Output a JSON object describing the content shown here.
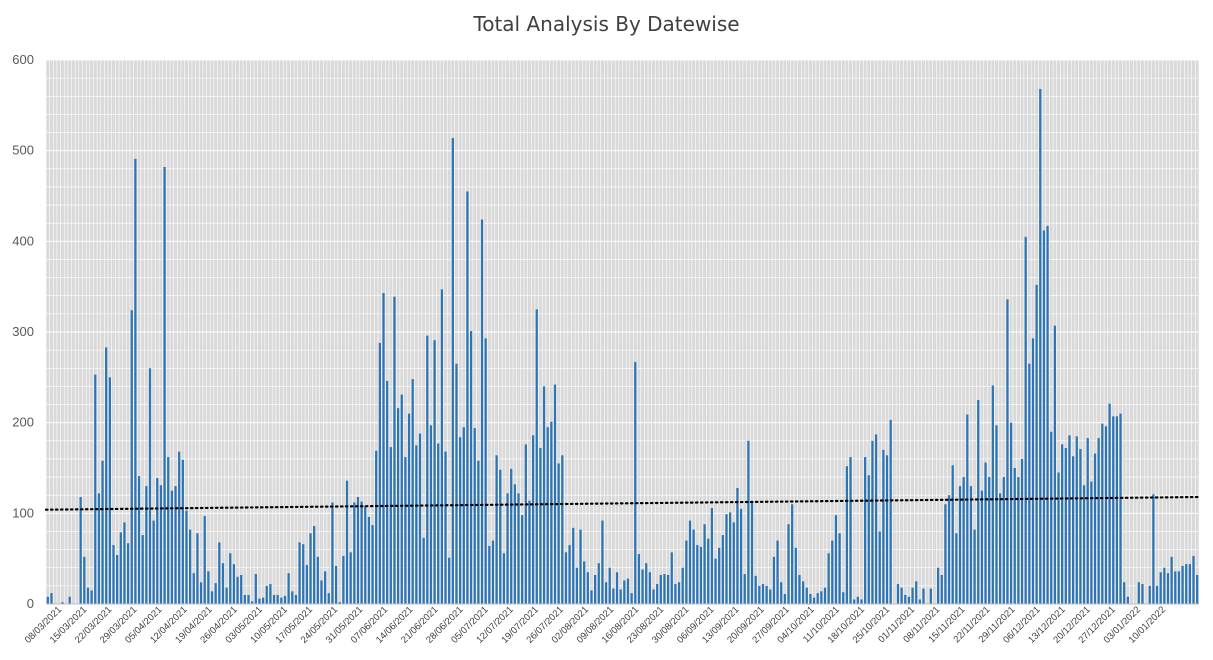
{
  "chart_data": {
    "type": "bar",
    "title": "Total Analysis By Datewise",
    "xlabel": "",
    "ylabel": "",
    "ylim": [
      0,
      600
    ],
    "y_ticks": [
      0,
      100,
      200,
      300,
      400,
      500,
      600
    ],
    "grid": true,
    "trendline": {
      "type": "linear",
      "style": "dotted",
      "color": "#000000",
      "start": 104,
      "end": 118
    },
    "bar_color": "#2E75B6",
    "x_tick_labels": [
      "08/03/2021",
      "15/03/2021",
      "22/03/2021",
      "29/03/2021",
      "05/04/2021",
      "12/04/2021",
      "19/04/2021",
      "26/04/2021",
      "03/05/2021",
      "10/05/2021",
      "17/05/2021",
      "24/05/2021",
      "31/05/2021",
      "07/06/2021",
      "14/06/2021",
      "21/06/2021",
      "28/06/2021",
      "05/07/2021",
      "12/07/2021",
      "19/07/2021",
      "26/07/2021",
      "02/08/2021",
      "09/08/2021",
      "16/08/2021",
      "23/08/2021",
      "30/08/2021",
      "06/09/2021",
      "13/09/2021",
      "20/09/2021",
      "27/09/2021",
      "04/10/2021",
      "11/10/2021",
      "18/10/2021",
      "25/10/2021",
      "01/11/2021",
      "08/11/2021",
      "15/11/2021",
      "22/11/2021",
      "29/11/2021",
      "06/12/2021",
      "13/12/2021",
      "20/12/2021",
      "27/12/2021",
      "03/01/2022",
      "10/01/2022"
    ],
    "values": [
      8,
      12,
      0,
      0,
      2,
      0,
      8,
      0,
      0,
      118,
      52,
      18,
      15,
      253,
      122,
      158,
      283,
      250,
      65,
      54,
      79,
      90,
      67,
      324,
      491,
      141,
      76,
      130,
      260,
      92,
      139,
      131,
      482,
      162,
      125,
      130,
      168,
      159,
      103,
      82,
      34,
      78,
      24,
      97,
      36,
      14,
      23,
      68,
      45,
      18,
      56,
      44,
      30,
      32,
      10,
      10,
      3,
      33,
      6,
      7,
      20,
      22,
      10,
      10,
      7,
      9,
      34,
      14,
      10,
      68,
      66,
      43,
      78,
      86,
      52,
      26,
      36,
      12,
      112,
      42,
      2,
      53,
      136,
      57,
      112,
      118,
      113,
      108,
      96,
      87,
      169,
      288,
      343,
      246,
      173,
      339,
      216,
      231,
      162,
      210,
      248,
      175,
      188,
      73,
      296,
      197,
      291,
      177,
      347,
      168,
      51,
      514,
      265,
      184,
      195,
      455,
      301,
      194,
      158,
      424,
      293,
      64,
      70,
      164,
      148,
      56,
      122,
      149,
      132,
      122,
      98,
      176,
      114,
      186,
      325,
      172,
      240,
      195,
      201,
      242,
      155,
      164,
      57,
      65,
      84,
      40,
      82,
      47,
      35,
      15,
      32,
      45,
      92,
      24,
      40,
      17,
      35,
      16,
      26,
      28,
      12,
      267,
      55,
      38,
      45,
      35,
      16,
      22,
      32,
      33,
      32,
      57,
      22,
      24,
      40,
      70,
      92,
      82,
      65,
      63,
      88,
      72,
      106,
      50,
      62,
      76,
      99,
      101,
      90,
      128,
      105,
      33,
      180,
      112,
      31,
      20,
      22,
      20,
      16,
      52,
      70,
      24,
      11,
      88,
      110,
      62,
      32,
      25,
      18,
      11,
      7,
      12,
      14,
      18,
      56,
      70,
      98,
      78,
      13,
      152,
      162,
      5,
      8,
      5,
      162,
      142,
      180,
      187,
      80,
      170,
      164,
      203,
      0,
      22,
      18,
      10,
      8,
      18,
      25,
      5,
      17,
      0,
      17,
      0,
      40,
      32,
      110,
      120,
      153,
      78,
      130,
      140,
      209,
      130,
      82,
      225,
      125,
      156,
      140,
      241,
      197,
      122,
      140,
      336,
      200,
      150,
      140,
      160,
      405,
      265,
      293,
      352,
      568,
      412,
      417,
      190,
      307,
      145,
      176,
      172,
      186,
      163,
      185,
      171,
      131,
      183,
      135,
      166,
      183,
      199,
      196,
      221,
      207,
      207,
      210,
      24,
      8,
      0,
      0,
      24,
      22,
      0,
      20,
      121,
      20,
      35,
      40,
      34,
      52,
      36,
      36,
      42,
      44,
      44,
      53,
      32
    ]
  }
}
